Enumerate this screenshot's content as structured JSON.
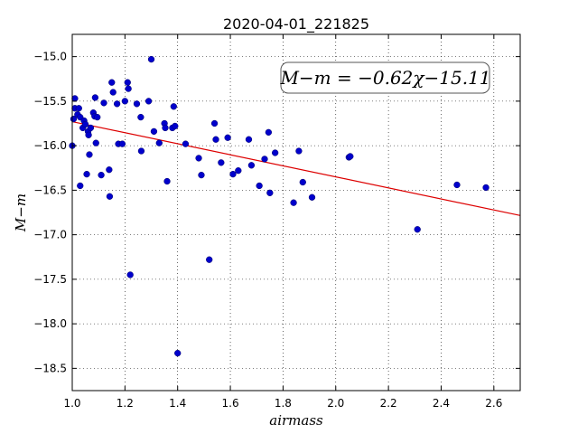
{
  "chart_data": {
    "type": "scatter",
    "title": "2020-04-01_221825",
    "xlabel": "airmass",
    "ylabel": "M−m",
    "xlim": [
      1.0,
      2.7
    ],
    "ylim": [
      -18.75,
      -14.75
    ],
    "y_inverted": true,
    "grid": true,
    "xticks": [
      1.0,
      1.2,
      1.4,
      1.6,
      1.8,
      2.0,
      2.2,
      2.4,
      2.6
    ],
    "xtick_labels": [
      "1.0",
      "1.2",
      "1.4",
      "1.6",
      "1.8",
      "2.0",
      "2.2",
      "2.4",
      "2.6"
    ],
    "yticks": [
      -15.0,
      -15.5,
      -16.0,
      -16.5,
      -17.0,
      -17.5,
      -18.0,
      -18.5
    ],
    "ytick_labels": [
      "−15.0",
      "−15.5",
      "−16.0",
      "−16.5",
      "−17.0",
      "−17.5",
      "−18.0",
      "−18.5"
    ],
    "points_color": "#0000cc",
    "fit_color": "#dd0000",
    "fit": {
      "slope": -0.62,
      "intercept": -15.11
    },
    "annotation": "M−m = −0.62χ−15.11",
    "points": [
      {
        "x": 1.0,
        "y": -16.0
      },
      {
        "x": 1.005,
        "y": -15.7
      },
      {
        "x": 1.01,
        "y": -15.47
      },
      {
        "x": 1.01,
        "y": -15.58
      },
      {
        "x": 1.02,
        "y": -15.65
      },
      {
        "x": 1.025,
        "y": -15.58
      },
      {
        "x": 1.03,
        "y": -15.68
      },
      {
        "x": 1.03,
        "y": -16.45
      },
      {
        "x": 1.04,
        "y": -15.8
      },
      {
        "x": 1.045,
        "y": -15.72
      },
      {
        "x": 1.05,
        "y": -15.76
      },
      {
        "x": 1.055,
        "y": -16.32
      },
      {
        "x": 1.06,
        "y": -15.84
      },
      {
        "x": 1.062,
        "y": -15.88
      },
      {
        "x": 1.065,
        "y": -16.1
      },
      {
        "x": 1.07,
        "y": -15.8
      },
      {
        "x": 1.08,
        "y": -15.63
      },
      {
        "x": 1.085,
        "y": -15.67
      },
      {
        "x": 1.087,
        "y": -15.46
      },
      {
        "x": 1.09,
        "y": -15.97
      },
      {
        "x": 1.095,
        "y": -15.68
      },
      {
        "x": 1.11,
        "y": -16.33
      },
      {
        "x": 1.12,
        "y": -15.52
      },
      {
        "x": 1.14,
        "y": -16.27
      },
      {
        "x": 1.142,
        "y": -16.57
      },
      {
        "x": 1.15,
        "y": -15.29
      },
      {
        "x": 1.155,
        "y": -15.4
      },
      {
        "x": 1.17,
        "y": -15.53
      },
      {
        "x": 1.175,
        "y": -15.98
      },
      {
        "x": 1.19,
        "y": -15.98
      },
      {
        "x": 1.2,
        "y": -15.5
      },
      {
        "x": 1.21,
        "y": -15.29
      },
      {
        "x": 1.213,
        "y": -15.36
      },
      {
        "x": 1.22,
        "y": -17.45
      },
      {
        "x": 1.245,
        "y": -15.53
      },
      {
        "x": 1.26,
        "y": -15.68
      },
      {
        "x": 1.262,
        "y": -16.06
      },
      {
        "x": 1.29,
        "y": -15.5
      },
      {
        "x": 1.3,
        "y": -15.03
      },
      {
        "x": 1.31,
        "y": -15.84
      },
      {
        "x": 1.33,
        "y": -15.97
      },
      {
        "x": 1.35,
        "y": -15.75
      },
      {
        "x": 1.353,
        "y": -15.8
      },
      {
        "x": 1.36,
        "y": -16.4
      },
      {
        "x": 1.38,
        "y": -15.8
      },
      {
        "x": 1.385,
        "y": -15.56
      },
      {
        "x": 1.39,
        "y": -15.78
      },
      {
        "x": 1.4,
        "y": -18.33
      },
      {
        "x": 1.43,
        "y": -15.98
      },
      {
        "x": 1.48,
        "y": -16.14
      },
      {
        "x": 1.49,
        "y": -16.33
      },
      {
        "x": 1.52,
        "y": -17.28
      },
      {
        "x": 1.54,
        "y": -15.75
      },
      {
        "x": 1.545,
        "y": -15.93
      },
      {
        "x": 1.565,
        "y": -16.19
      },
      {
        "x": 1.59,
        "y": -15.91
      },
      {
        "x": 1.61,
        "y": -16.32
      },
      {
        "x": 1.63,
        "y": -16.28
      },
      {
        "x": 1.67,
        "y": -15.93
      },
      {
        "x": 1.68,
        "y": -16.22
      },
      {
        "x": 1.71,
        "y": -16.45
      },
      {
        "x": 1.73,
        "y": -16.15
      },
      {
        "x": 1.745,
        "y": -15.85
      },
      {
        "x": 1.75,
        "y": -16.53
      },
      {
        "x": 1.77,
        "y": -16.08
      },
      {
        "x": 1.84,
        "y": -16.64
      },
      {
        "x": 1.86,
        "y": -16.06
      },
      {
        "x": 1.875,
        "y": -16.41
      },
      {
        "x": 1.91,
        "y": -16.58
      },
      {
        "x": 2.05,
        "y": -16.13
      },
      {
        "x": 2.055,
        "y": -16.12
      },
      {
        "x": 2.31,
        "y": -16.94
      },
      {
        "x": 2.46,
        "y": -16.44
      },
      {
        "x": 2.57,
        "y": -16.47
      }
    ]
  }
}
